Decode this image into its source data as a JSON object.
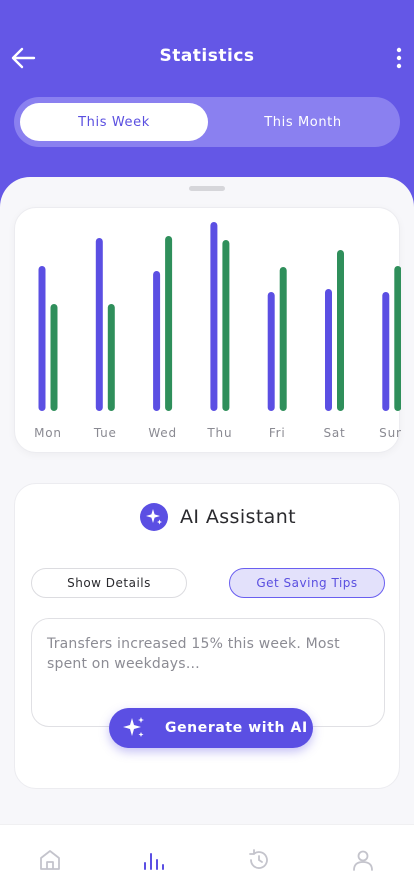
{
  "header": {
    "title": "Statistics",
    "back_icon": "arrow-left-icon",
    "menu_icon": "more-vertical-icon"
  },
  "period_toggle": {
    "options": [
      "This Week",
      "This Month"
    ],
    "selected": "This Week"
  },
  "chart_data": {
    "type": "bar",
    "categories": [
      "Mon",
      "Tue",
      "Wed",
      "Thu",
      "Fri",
      "Sat",
      "Sun"
    ],
    "series": [
      {
        "values": [
          145,
          173,
          140,
          189,
          119,
          122,
          119
        ],
        "color": "#5b4fe3"
      },
      {
        "values": [
          107,
          107,
          175,
          171,
          144,
          161,
          145
        ],
        "color": "#2f8f5b"
      }
    ],
    "ylim": [
      0,
      200
    ],
    "grid": false
  },
  "ai_assistant": {
    "title": "AI Assistant",
    "icon": "sparkle-icon",
    "buttons": {
      "details_label": "Show Details",
      "tips_label": "Get Saving Tips"
    },
    "textarea_text": "Transfers increased 15% this week. Most spent on weekdays…",
    "generate_label": "Generate with AI"
  },
  "bottom_nav": {
    "items": [
      {
        "icon": "home-icon",
        "active": false
      },
      {
        "icon": "bar-chart-icon",
        "active": true
      },
      {
        "icon": "history-icon",
        "active": false
      },
      {
        "icon": "profile-icon",
        "active": false
      }
    ],
    "active_color": "#5b4fe3",
    "inactive_color": "#c4c4cc"
  },
  "colors": {
    "primary": "#6457e6",
    "primary_dark": "#5b4fe3",
    "green": "#2f8f5b"
  }
}
